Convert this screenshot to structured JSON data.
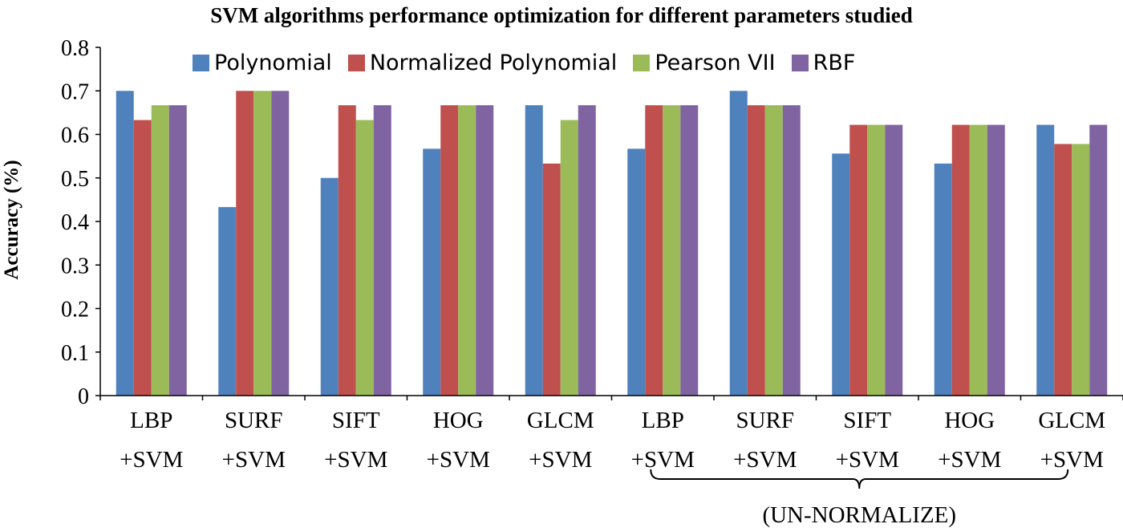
{
  "chart_data": {
    "type": "bar",
    "title": "SVM algorithms performance optimization for different parameters studied",
    "ylabel": "Accuracy (%)",
    "xlabel": "",
    "ylim": [
      0,
      0.8
    ],
    "yticks": [
      "0",
      "0.1",
      "0.2",
      "0.3",
      "0.4",
      "0.5",
      "0.6",
      "0.7",
      "0.8"
    ],
    "categories": [
      [
        "LBP",
        "+SVM"
      ],
      [
        "SURF",
        "+SVM"
      ],
      [
        "SIFT",
        "+SVM"
      ],
      [
        "HOG",
        "+SVM"
      ],
      [
        "GLCM",
        "+SVM"
      ],
      [
        "LBP",
        "+SVM"
      ],
      [
        "SURF",
        "+SVM"
      ],
      [
        "SIFT",
        "+SVM"
      ],
      [
        "HOG",
        "+SVM"
      ],
      [
        "GLCM",
        "+SVM"
      ]
    ],
    "series": [
      {
        "name": "Polynomial",
        "color": "#4F81BD",
        "values": [
          0.7,
          0.433,
          0.5,
          0.567,
          0.667,
          0.567,
          0.7,
          0.556,
          0.533,
          0.622
        ]
      },
      {
        "name": "Normalized Polynomial",
        "color": "#C0504D",
        "values": [
          0.633,
          0.7,
          0.667,
          0.667,
          0.533,
          0.667,
          0.667,
          0.622,
          0.622,
          0.578
        ]
      },
      {
        "name": "Pearson VII",
        "color": "#9BBB59",
        "values": [
          0.667,
          0.7,
          0.633,
          0.667,
          0.633,
          0.667,
          0.667,
          0.622,
          0.622,
          0.578
        ]
      },
      {
        "name": "RBF",
        "color": "#8064A2",
        "values": [
          0.667,
          0.7,
          0.667,
          0.667,
          0.667,
          0.667,
          0.667,
          0.622,
          0.622,
          0.622
        ]
      }
    ],
    "legend_position": "top",
    "grid": false,
    "annotation": {
      "text": "(UN-NORMALIZE)",
      "spans_categories": [
        5,
        9
      ]
    }
  }
}
